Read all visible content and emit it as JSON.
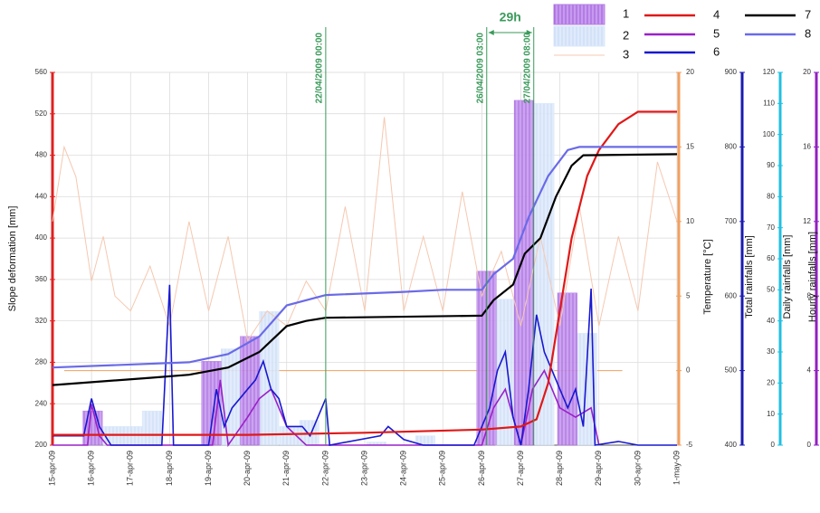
{
  "chart_data": {
    "type": "combo",
    "xlim": [
      0,
      16
    ],
    "xticks": [
      {
        "value": 0,
        "label": "15-apr-09"
      },
      {
        "value": 1,
        "label": "16-apr-09"
      },
      {
        "value": 2,
        "label": "17-apr-09"
      },
      {
        "value": 3,
        "label": "18-apr-09"
      },
      {
        "value": 4,
        "label": "19-apr-09"
      },
      {
        "value": 5,
        "label": "20-apr-09"
      },
      {
        "value": 6,
        "label": "21-apr-09"
      },
      {
        "value": 7,
        "label": "22-apr-09"
      },
      {
        "value": 8,
        "label": "23-apr-09"
      },
      {
        "value": 9,
        "label": "24-apr-09"
      },
      {
        "value": 10,
        "label": "25-apr-09"
      },
      {
        "value": 11,
        "label": "26-apr-09"
      },
      {
        "value": 12,
        "label": "27-apr-09"
      },
      {
        "value": 13,
        "label": "28-apr-09"
      },
      {
        "value": 14,
        "label": "29-apr-09"
      },
      {
        "value": 15,
        "label": "30-apr-09"
      },
      {
        "value": 16,
        "label": "1-may-09"
      }
    ],
    "grid": true,
    "axes": {
      "y": {
        "label": "Slope deformation [mm]",
        "lim": [
          200,
          560
        ],
        "ticks": [
          200,
          240,
          280,
          320,
          360,
          400,
          440,
          480,
          520,
          560
        ],
        "color": "#e02020",
        "side": "left"
      },
      "temp": {
        "label": "Temperature [°C]",
        "lim": [
          -5,
          20
        ],
        "ticks": [
          -5,
          0,
          5,
          10,
          15,
          20
        ],
        "color": "#f0a060",
        "side": "right"
      },
      "total": {
        "label": "Total rainfalls [mm]",
        "lim": [
          400,
          900
        ],
        "ticks": [
          400,
          500,
          600,
          700,
          800,
          900
        ],
        "color": "#1a1ab0",
        "side": "right"
      },
      "daily": {
        "label": "Daily rainfalls [mm]",
        "lim": [
          0,
          120
        ],
        "ticks": [
          0,
          10,
          20,
          30,
          40,
          50,
          60,
          70,
          80,
          90,
          100,
          110,
          120
        ],
        "color": "#20c0e0",
        "side": "right"
      },
      "hourly": {
        "label": "Hourly rainfalls [mm]",
        "lim": [
          0,
          20
        ],
        "ticks": [
          0,
          4,
          8,
          12,
          16,
          20
        ],
        "color": "#9020c0",
        "side": "right"
      }
    },
    "series": [
      {
        "name": "1",
        "type": "bar",
        "axis": "daily",
        "color": "#b67ee6",
        "x": [
          1.03,
          4.07,
          5.06,
          11.12,
          12.08,
          13.19
        ],
        "values": [
          11,
          27,
          35,
          56,
          111,
          49
        ]
      },
      {
        "name": "2",
        "type": "bar",
        "axis": "daily",
        "color": "#d8e8fb",
        "x": [
          1.55,
          2.06,
          2.55,
          4.57,
          5.55,
          6.07,
          6.58,
          8.3,
          9.55,
          11.6,
          12.6,
          13.7
        ],
        "values": [
          6,
          6,
          11,
          31,
          43,
          6,
          8,
          1,
          3,
          47,
          110,
          36
        ]
      },
      {
        "name": "3",
        "type": "line",
        "axis": "temp",
        "color": "#f5c8b0",
        "x": [
          0,
          0.3,
          0.6,
          1,
          1.3,
          1.6,
          2,
          2.5,
          3,
          3.5,
          4,
          4.5,
          5,
          5.5,
          6,
          6.5,
          7,
          7.5,
          8,
          8.5,
          9,
          9.5,
          10,
          10.5,
          11,
          11.5,
          12,
          12.5,
          13,
          13.5,
          14,
          14.5,
          15,
          15.5,
          16
        ],
        "values": [
          10,
          15,
          13,
          6,
          9,
          5,
          4,
          7,
          3,
          10,
          4,
          9,
          2,
          4,
          3,
          6,
          4,
          11,
          4,
          17,
          4,
          9,
          4,
          12,
          5,
          8,
          3,
          9,
          3,
          11,
          3,
          9,
          4,
          14,
          10
        ]
      },
      {
        "name": "4",
        "type": "line",
        "axis": "y",
        "color": "#e01818",
        "x": [
          0,
          5,
          8,
          11,
          12,
          12.4,
          12.7,
          13,
          13.3,
          13.7,
          14,
          14.5,
          15,
          16
        ],
        "values": [
          210,
          210,
          212,
          215,
          218,
          225,
          260,
          330,
          400,
          460,
          485,
          510,
          522,
          522
        ]
      },
      {
        "name": "5",
        "type": "line",
        "axis": "hourly",
        "color": "#9a20c8",
        "x": [
          0,
          0.9,
          1,
          1.2,
          1.4,
          4.1,
          4.3,
          4.5,
          5,
          5.3,
          5.6,
          6,
          6.5,
          11,
          11.3,
          11.6,
          12,
          12.3,
          12.6,
          13,
          13.4,
          13.8,
          14
        ],
        "values": [
          0,
          0,
          2.2,
          0.5,
          0,
          0,
          3.5,
          0,
          1.5,
          2.5,
          3,
          1,
          0,
          0,
          2,
          3,
          0,
          3,
          4,
          2,
          1.5,
          2,
          0
        ]
      },
      {
        "name": "6",
        "type": "line",
        "axis": "hourly",
        "color": "#1818d0",
        "x": [
          0,
          0.8,
          1,
          1.2,
          1.5,
          2.8,
          3,
          3.1,
          4,
          4.2,
          4.4,
          4.6,
          5,
          5.2,
          5.4,
          5.6,
          5.8,
          6,
          6.4,
          6.6,
          7,
          7.1,
          8.4,
          8.6,
          9,
          9.5,
          10.8,
          11,
          11.2,
          11.4,
          11.6,
          11.8,
          12,
          12.2,
          12.4,
          12.6,
          12.8,
          13,
          13.2,
          13.4,
          13.6,
          13.8,
          13.9,
          14.5,
          15,
          16
        ],
        "values": [
          0.5,
          0.5,
          2.5,
          1,
          0,
          0,
          8.6,
          0,
          0,
          3,
          1,
          2,
          3,
          3.5,
          4.5,
          3,
          2.5,
          1,
          1,
          0.5,
          2.5,
          0,
          0.5,
          1,
          0.3,
          0,
          0,
          1,
          2,
          4,
          5,
          1.5,
          0,
          3,
          7,
          5,
          4,
          3,
          2,
          3,
          1,
          8.4,
          0,
          0.2,
          0,
          0
        ]
      },
      {
        "name": "7",
        "type": "line",
        "axis": "y",
        "color": "#000000",
        "x": [
          0,
          2.5,
          3.5,
          4.5,
          5.3,
          6,
          6.5,
          7,
          11,
          11.3,
          11.8,
          12.1,
          12.5,
          12.9,
          13.3,
          13.6,
          16
        ],
        "values": [
          258,
          265,
          268,
          275,
          290,
          315,
          320,
          323,
          325,
          340,
          355,
          385,
          400,
          440,
          470,
          480,
          481
        ]
      },
      {
        "name": "8",
        "type": "line",
        "axis": "y",
        "color": "#6a6ae8",
        "x": [
          0,
          3.5,
          4.5,
          5.3,
          6,
          7,
          9,
          10,
          11,
          11.3,
          11.8,
          12.2,
          12.7,
          13.2,
          13.5,
          16
        ],
        "values": [
          275,
          280,
          288,
          305,
          335,
          345,
          348,
          350,
          350,
          365,
          380,
          420,
          460,
          485,
          488,
          488
        ]
      }
    ],
    "annotations": [
      {
        "text": "22/04/2009 00:00",
        "x": 7
      },
      {
        "text": "26/04/2009 03:00",
        "x": 11.125
      },
      {
        "text": "27/04/2009 08:00",
        "x": 12.33
      }
    ],
    "interval_label": "29h"
  }
}
